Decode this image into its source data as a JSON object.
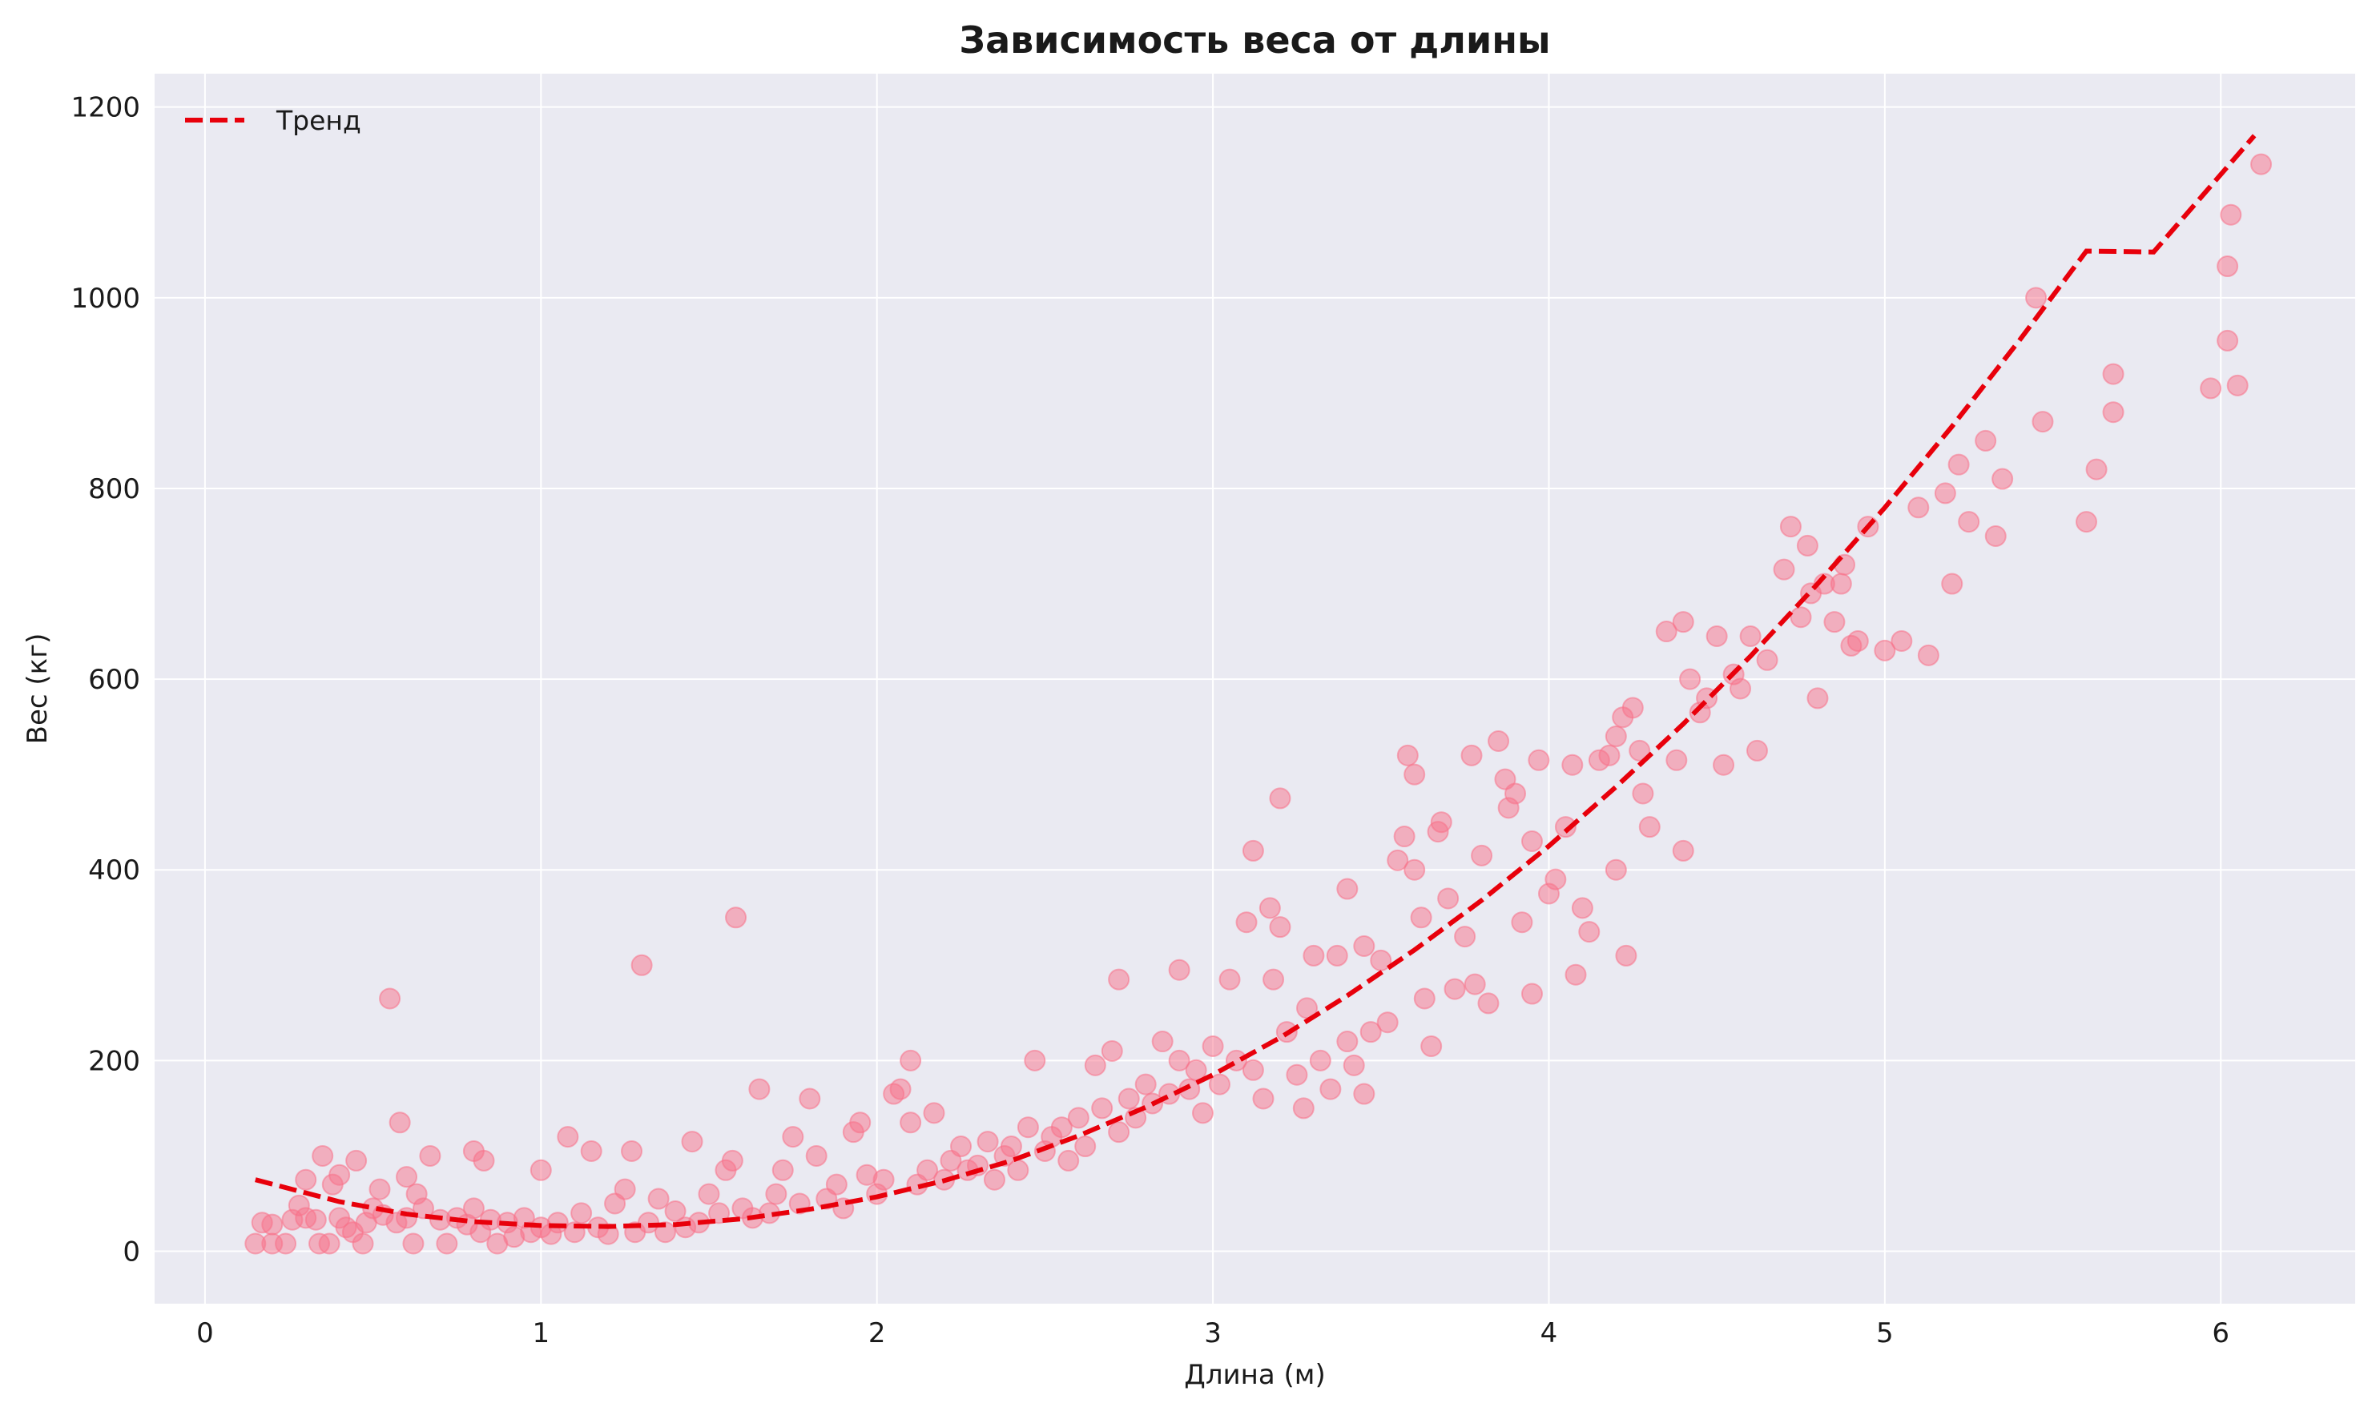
{
  "chart_data": {
    "type": "scatter",
    "title": "Зависимость веса от длины",
    "xlabel": "Длина (м)",
    "ylabel": "Вес (кг)",
    "xlim": [
      -0.15,
      6.4
    ],
    "ylim": [
      -55,
      1235
    ],
    "x_ticks": [
      0,
      1,
      2,
      3,
      4,
      5,
      6
    ],
    "y_ticks": [
      0,
      200,
      400,
      600,
      800,
      1000,
      1200
    ],
    "grid": true,
    "legend": {
      "placement": "top-left",
      "entries": [
        "Тренд"
      ]
    },
    "colors": {
      "background": "#eaeaf2",
      "grid": "#ffffff",
      "points": "#f77189",
      "trend": "#e8000b"
    },
    "trend": {
      "name": "Тренд",
      "style": "dashed",
      "x_range": [
        0.15,
        6.1
      ],
      "points": [
        [
          0.15,
          75
        ],
        [
          0.4,
          52
        ],
        [
          0.6,
          39
        ],
        [
          0.8,
          31
        ],
        [
          1.0,
          27
        ],
        [
          1.2,
          26
        ],
        [
          1.4,
          28
        ],
        [
          1.6,
          34
        ],
        [
          1.8,
          44
        ],
        [
          2.0,
          57
        ],
        [
          2.2,
          74
        ],
        [
          2.4,
          95
        ],
        [
          2.6,
          121
        ],
        [
          2.8,
          151
        ],
        [
          3.0,
          185
        ],
        [
          3.2,
          224
        ],
        [
          3.4,
          268
        ],
        [
          3.6,
          316
        ],
        [
          3.8,
          368
        ],
        [
          4.0,
          425
        ],
        [
          4.2,
          487
        ],
        [
          4.4,
          553
        ],
        [
          4.6,
          624
        ],
        [
          4.8,
          700
        ],
        [
          5.0,
          780
        ],
        [
          5.2,
          865
        ],
        [
          5.4,
          955
        ],
        [
          5.6,
          1049
        ],
        [
          5.8,
          1048
        ],
        [
          6.1,
          1170
        ]
      ]
    },
    "series": [
      {
        "name": "",
        "points": [
          [
            0.15,
            8
          ],
          [
            0.17,
            30
          ],
          [
            0.2,
            28
          ],
          [
            0.2,
            8
          ],
          [
            0.24,
            8
          ],
          [
            0.26,
            33
          ],
          [
            0.28,
            48
          ],
          [
            0.3,
            75
          ],
          [
            0.3,
            35
          ],
          [
            0.33,
            33
          ],
          [
            0.34,
            8
          ],
          [
            0.35,
            100
          ],
          [
            0.37,
            8
          ],
          [
            0.38,
            70
          ],
          [
            0.4,
            80
          ],
          [
            0.4,
            35
          ],
          [
            0.42,
            25
          ],
          [
            0.44,
            20
          ],
          [
            0.45,
            95
          ],
          [
            0.47,
            8
          ],
          [
            0.48,
            30
          ],
          [
            0.5,
            45
          ],
          [
            0.52,
            65
          ],
          [
            0.53,
            38
          ],
          [
            0.55,
            265
          ],
          [
            0.57,
            30
          ],
          [
            0.58,
            135
          ],
          [
            0.6,
            78
          ],
          [
            0.6,
            35
          ],
          [
            0.62,
            8
          ],
          [
            0.63,
            60
          ],
          [
            0.65,
            45
          ],
          [
            0.67,
            100
          ],
          [
            0.7,
            33
          ],
          [
            0.72,
            8
          ],
          [
            0.75,
            35
          ],
          [
            0.78,
            28
          ],
          [
            0.8,
            45
          ],
          [
            0.8,
            105
          ],
          [
            0.82,
            20
          ],
          [
            0.83,
            95
          ],
          [
            0.85,
            33
          ],
          [
            0.87,
            8
          ],
          [
            0.9,
            30
          ],
          [
            0.92,
            15
          ],
          [
            0.95,
            35
          ],
          [
            0.97,
            20
          ],
          [
            1.0,
            85
          ],
          [
            1.0,
            25
          ],
          [
            1.03,
            18
          ],
          [
            1.05,
            30
          ],
          [
            1.08,
            120
          ],
          [
            1.1,
            20
          ],
          [
            1.12,
            40
          ],
          [
            1.15,
            105
          ],
          [
            1.17,
            25
          ],
          [
            1.2,
            18
          ],
          [
            1.22,
            50
          ],
          [
            1.25,
            65
          ],
          [
            1.27,
            105
          ],
          [
            1.28,
            20
          ],
          [
            1.3,
            300
          ],
          [
            1.32,
            30
          ],
          [
            1.35,
            55
          ],
          [
            1.37,
            20
          ],
          [
            1.4,
            42
          ],
          [
            1.43,
            25
          ],
          [
            1.45,
            115
          ],
          [
            1.47,
            30
          ],
          [
            1.5,
            60
          ],
          [
            1.53,
            40
          ],
          [
            1.55,
            85
          ],
          [
            1.57,
            95
          ],
          [
            1.58,
            350
          ],
          [
            1.6,
            45
          ],
          [
            1.63,
            35
          ],
          [
            1.65,
            170
          ],
          [
            1.68,
            40
          ],
          [
            1.7,
            60
          ],
          [
            1.72,
            85
          ],
          [
            1.75,
            120
          ],
          [
            1.77,
            50
          ],
          [
            1.8,
            160
          ],
          [
            1.82,
            100
          ],
          [
            1.85,
            55
          ],
          [
            1.88,
            70
          ],
          [
            1.9,
            45
          ],
          [
            1.93,
            125
          ],
          [
            1.95,
            135
          ],
          [
            1.97,
            80
          ],
          [
            2.0,
            60
          ],
          [
            2.02,
            75
          ],
          [
            2.05,
            165
          ],
          [
            2.07,
            170
          ],
          [
            2.1,
            200
          ],
          [
            2.1,
            135
          ],
          [
            2.12,
            70
          ],
          [
            2.15,
            85
          ],
          [
            2.17,
            145
          ],
          [
            2.2,
            75
          ],
          [
            2.22,
            95
          ],
          [
            2.25,
            110
          ],
          [
            2.27,
            85
          ],
          [
            2.3,
            90
          ],
          [
            2.33,
            115
          ],
          [
            2.35,
            75
          ],
          [
            2.38,
            100
          ],
          [
            2.4,
            110
          ],
          [
            2.42,
            85
          ],
          [
            2.45,
            130
          ],
          [
            2.47,
            200
          ],
          [
            2.5,
            105
          ],
          [
            2.52,
            120
          ],
          [
            2.55,
            130
          ],
          [
            2.57,
            95
          ],
          [
            2.6,
            140
          ],
          [
            2.62,
            110
          ],
          [
            2.65,
            195
          ],
          [
            2.67,
            150
          ],
          [
            2.7,
            210
          ],
          [
            2.72,
            125
          ],
          [
            2.72,
            285
          ],
          [
            2.75,
            160
          ],
          [
            2.77,
            140
          ],
          [
            2.8,
            175
          ],
          [
            2.82,
            155
          ],
          [
            2.85,
            220
          ],
          [
            2.87,
            165
          ],
          [
            2.9,
            295
          ],
          [
            2.9,
            200
          ],
          [
            2.93,
            170
          ],
          [
            2.95,
            190
          ],
          [
            2.97,
            145
          ],
          [
            3.0,
            215
          ],
          [
            3.02,
            175
          ],
          [
            3.05,
            285
          ],
          [
            3.07,
            200
          ],
          [
            3.1,
            345
          ],
          [
            3.12,
            420
          ],
          [
            3.12,
            190
          ],
          [
            3.15,
            160
          ],
          [
            3.17,
            360
          ],
          [
            3.18,
            285
          ],
          [
            3.2,
            340
          ],
          [
            3.2,
            475
          ],
          [
            3.22,
            230
          ],
          [
            3.25,
            185
          ],
          [
            3.27,
            150
          ],
          [
            3.28,
            255
          ],
          [
            3.3,
            310
          ],
          [
            3.32,
            200
          ],
          [
            3.35,
            170
          ],
          [
            3.37,
            310
          ],
          [
            3.4,
            380
          ],
          [
            3.4,
            220
          ],
          [
            3.42,
            195
          ],
          [
            3.45,
            320
          ],
          [
            3.45,
            165
          ],
          [
            3.47,
            230
          ],
          [
            3.5,
            305
          ],
          [
            3.52,
            240
          ],
          [
            3.55,
            410
          ],
          [
            3.57,
            435
          ],
          [
            3.58,
            520
          ],
          [
            3.6,
            400
          ],
          [
            3.6,
            500
          ],
          [
            3.62,
            350
          ],
          [
            3.63,
            265
          ],
          [
            3.65,
            215
          ],
          [
            3.67,
            440
          ],
          [
            3.68,
            450
          ],
          [
            3.7,
            370
          ],
          [
            3.72,
            275
          ],
          [
            3.75,
            330
          ],
          [
            3.77,
            520
          ],
          [
            3.78,
            280
          ],
          [
            3.8,
            415
          ],
          [
            3.82,
            260
          ],
          [
            3.85,
            535
          ],
          [
            3.87,
            495
          ],
          [
            3.88,
            465
          ],
          [
            3.9,
            480
          ],
          [
            3.92,
            345
          ],
          [
            3.95,
            270
          ],
          [
            3.95,
            430
          ],
          [
            3.97,
            515
          ],
          [
            4.0,
            375
          ],
          [
            4.02,
            390
          ],
          [
            4.05,
            445
          ],
          [
            4.07,
            510
          ],
          [
            4.08,
            290
          ],
          [
            4.1,
            360
          ],
          [
            4.12,
            335
          ],
          [
            4.15,
            515
          ],
          [
            4.18,
            520
          ],
          [
            4.2,
            540
          ],
          [
            4.2,
            400
          ],
          [
            4.22,
            560
          ],
          [
            4.23,
            310
          ],
          [
            4.25,
            570
          ],
          [
            4.27,
            525
          ],
          [
            4.28,
            480
          ],
          [
            4.3,
            445
          ],
          [
            4.35,
            650
          ],
          [
            4.38,
            515
          ],
          [
            4.4,
            660
          ],
          [
            4.4,
            420
          ],
          [
            4.42,
            600
          ],
          [
            4.45,
            565
          ],
          [
            4.47,
            580
          ],
          [
            4.5,
            645
          ],
          [
            4.52,
            510
          ],
          [
            4.55,
            605
          ],
          [
            4.57,
            590
          ],
          [
            4.6,
            645
          ],
          [
            4.62,
            525
          ],
          [
            4.65,
            620
          ],
          [
            4.7,
            715
          ],
          [
            4.72,
            760
          ],
          [
            4.75,
            665
          ],
          [
            4.77,
            740
          ],
          [
            4.78,
            690
          ],
          [
            4.8,
            580
          ],
          [
            4.82,
            700
          ],
          [
            4.85,
            660
          ],
          [
            4.87,
            700
          ],
          [
            4.88,
            720
          ],
          [
            4.9,
            635
          ],
          [
            4.92,
            640
          ],
          [
            4.95,
            760
          ],
          [
            5.0,
            630
          ],
          [
            5.05,
            640
          ],
          [
            5.1,
            780
          ],
          [
            5.13,
            625
          ],
          [
            5.18,
            795
          ],
          [
            5.2,
            700
          ],
          [
            5.22,
            825
          ],
          [
            5.25,
            765
          ],
          [
            5.3,
            850
          ],
          [
            5.33,
            750
          ],
          [
            5.35,
            810
          ],
          [
            5.45,
            1000
          ],
          [
            5.47,
            870
          ],
          [
            5.6,
            765
          ],
          [
            5.63,
            820
          ],
          [
            5.68,
            920
          ],
          [
            5.68,
            880
          ],
          [
            5.97,
            905
          ],
          [
            6.02,
            955
          ],
          [
            6.05,
            908
          ],
          [
            6.02,
            1033
          ],
          [
            6.03,
            1087
          ],
          [
            6.12,
            1140
          ]
        ]
      }
    ]
  }
}
